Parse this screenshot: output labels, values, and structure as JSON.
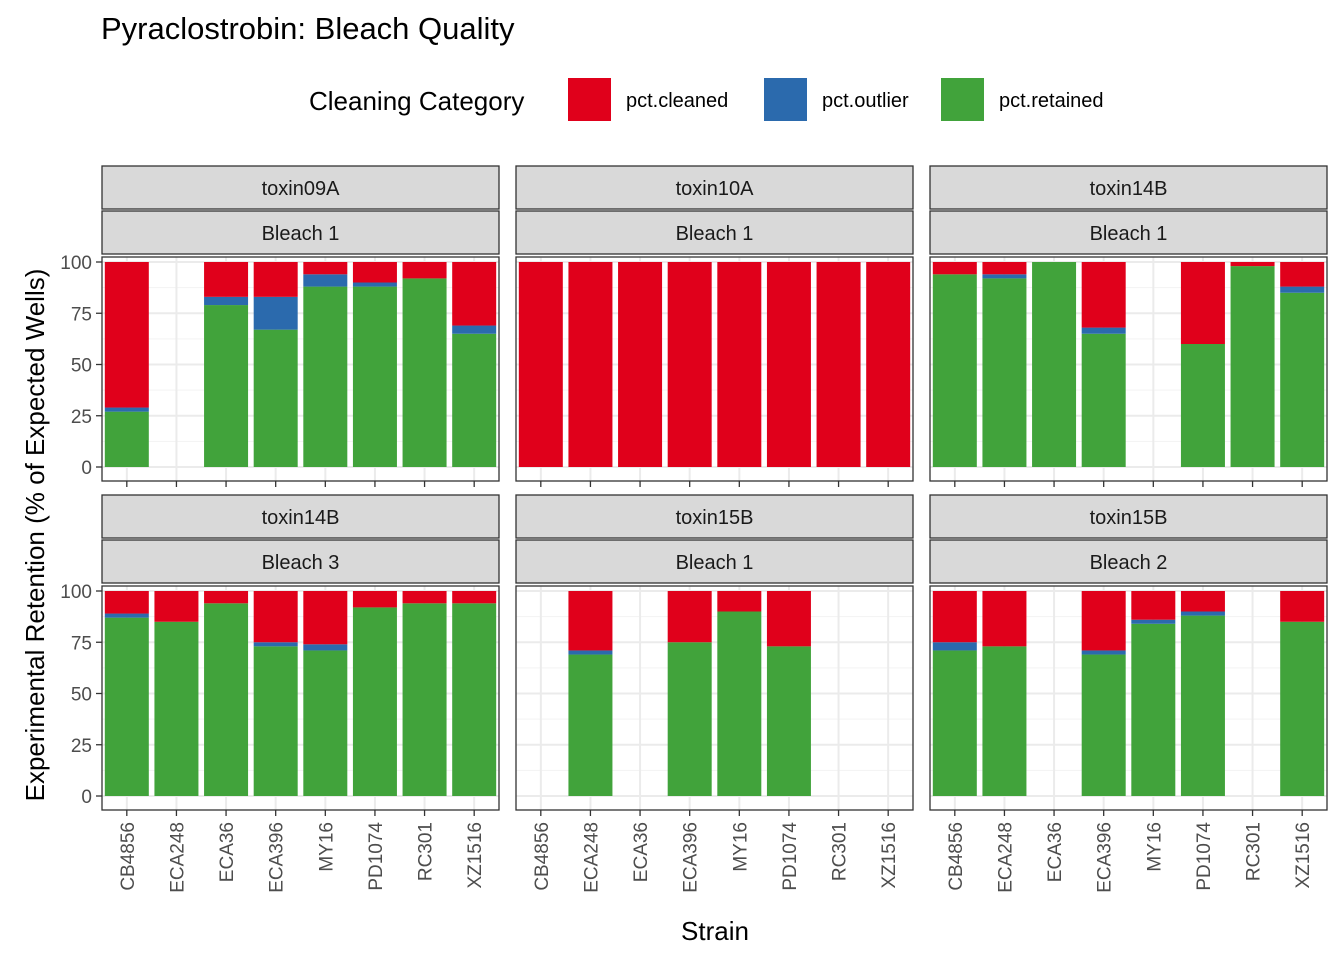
{
  "colors": {
    "pct.cleaned": "#E0001B",
    "pct.outlier": "#2B6AAD",
    "pct.retained": "#41A33B",
    "strip_fill": "#D9D9D9",
    "grid_major": "#EBEBEB",
    "grid_minor": "#F3F3F3",
    "panel_border": "#333333"
  },
  "chart_data": {
    "type": "bar",
    "stacked": true,
    "title": "Pyraclostrobin: Bleach Quality",
    "xlabel": "Strain",
    "ylabel": "Experimental Retention (% of Expected Wells)",
    "ylim": [
      0,
      100
    ],
    "yticks": [
      "0",
      "25",
      "50",
      "75",
      "100"
    ],
    "categories": [
      "CB4856",
      "ECA248",
      "ECA36",
      "ECA396",
      "MY16",
      "PD1074",
      "RC301",
      "XZ1516"
    ],
    "legend": {
      "title": "Cleaning Category",
      "position": "top",
      "entries": [
        "pct.cleaned",
        "pct.outlier",
        "pct.retained"
      ]
    },
    "stack_order_bottom_to_top": [
      "pct.retained",
      "pct.outlier",
      "pct.cleaned"
    ],
    "panels": [
      {
        "assay": "toxin09A",
        "bleach": "Bleach 1",
        "bars": [
          {
            "strain": "CB4856",
            "retained": 27,
            "outlier": 2,
            "cleaned": 71
          },
          {
            "strain": "ECA36",
            "retained": 79,
            "outlier": 4,
            "cleaned": 17
          },
          {
            "strain": "ECA396",
            "retained": 67,
            "outlier": 16,
            "cleaned": 17
          },
          {
            "strain": "MY16",
            "retained": 88,
            "outlier": 6,
            "cleaned": 6
          },
          {
            "strain": "PD1074",
            "retained": 88,
            "outlier": 2,
            "cleaned": 10
          },
          {
            "strain": "RC301",
            "retained": 92,
            "outlier": 0,
            "cleaned": 8
          },
          {
            "strain": "XZ1516",
            "retained": 65,
            "outlier": 4,
            "cleaned": 31
          }
        ]
      },
      {
        "assay": "toxin10A",
        "bleach": "Bleach 1",
        "bars": [
          {
            "strain": "CB4856",
            "retained": 0,
            "outlier": 0,
            "cleaned": 100
          },
          {
            "strain": "ECA248",
            "retained": 0,
            "outlier": 0,
            "cleaned": 100
          },
          {
            "strain": "ECA36",
            "retained": 0,
            "outlier": 0,
            "cleaned": 100
          },
          {
            "strain": "ECA396",
            "retained": 0,
            "outlier": 0,
            "cleaned": 100
          },
          {
            "strain": "MY16",
            "retained": 0,
            "outlier": 0,
            "cleaned": 100
          },
          {
            "strain": "PD1074",
            "retained": 0,
            "outlier": 0,
            "cleaned": 100
          },
          {
            "strain": "RC301",
            "retained": 0,
            "outlier": 0,
            "cleaned": 100
          },
          {
            "strain": "XZ1516",
            "retained": 0,
            "outlier": 0,
            "cleaned": 100
          }
        ]
      },
      {
        "assay": "toxin14B",
        "bleach": "Bleach 1",
        "bars": [
          {
            "strain": "CB4856",
            "retained": 94,
            "outlier": 0,
            "cleaned": 6
          },
          {
            "strain": "ECA248",
            "retained": 92,
            "outlier": 2,
            "cleaned": 6
          },
          {
            "strain": "ECA36",
            "retained": 100,
            "outlier": 0,
            "cleaned": 0
          },
          {
            "strain": "ECA396",
            "retained": 65,
            "outlier": 3,
            "cleaned": 32
          },
          {
            "strain": "PD1074",
            "retained": 60,
            "outlier": 0,
            "cleaned": 40
          },
          {
            "strain": "RC301",
            "retained": 98,
            "outlier": 0,
            "cleaned": 2
          },
          {
            "strain": "XZ1516",
            "retained": 85,
            "outlier": 3,
            "cleaned": 12
          }
        ]
      },
      {
        "assay": "toxin14B",
        "bleach": "Bleach 3",
        "bars": [
          {
            "strain": "CB4856",
            "retained": 87,
            "outlier": 2,
            "cleaned": 11
          },
          {
            "strain": "ECA248",
            "retained": 85,
            "outlier": 0,
            "cleaned": 15
          },
          {
            "strain": "ECA36",
            "retained": 94,
            "outlier": 0,
            "cleaned": 6
          },
          {
            "strain": "ECA396",
            "retained": 73,
            "outlier": 2,
            "cleaned": 25
          },
          {
            "strain": "MY16",
            "retained": 71,
            "outlier": 3,
            "cleaned": 26
          },
          {
            "strain": "PD1074",
            "retained": 92,
            "outlier": 0,
            "cleaned": 8
          },
          {
            "strain": "RC301",
            "retained": 94,
            "outlier": 0,
            "cleaned": 6
          },
          {
            "strain": "XZ1516",
            "retained": 94,
            "outlier": 0,
            "cleaned": 6
          }
        ]
      },
      {
        "assay": "toxin15B",
        "bleach": "Bleach 1",
        "bars": [
          {
            "strain": "ECA248",
            "retained": 69,
            "outlier": 2,
            "cleaned": 29
          },
          {
            "strain": "ECA396",
            "retained": 75,
            "outlier": 0,
            "cleaned": 25
          },
          {
            "strain": "MY16",
            "retained": 90,
            "outlier": 0,
            "cleaned": 10
          },
          {
            "strain": "PD1074",
            "retained": 73,
            "outlier": 0,
            "cleaned": 27
          }
        ]
      },
      {
        "assay": "toxin15B",
        "bleach": "Bleach 2",
        "bars": [
          {
            "strain": "CB4856",
            "retained": 71,
            "outlier": 4,
            "cleaned": 25
          },
          {
            "strain": "ECA248",
            "retained": 73,
            "outlier": 0,
            "cleaned": 27
          },
          {
            "strain": "ECA396",
            "retained": 69,
            "outlier": 2,
            "cleaned": 29
          },
          {
            "strain": "MY16",
            "retained": 84,
            "outlier": 2,
            "cleaned": 14
          },
          {
            "strain": "PD1074",
            "retained": 88,
            "outlier": 2,
            "cleaned": 10
          },
          {
            "strain": "XZ1516",
            "retained": 85,
            "outlier": 0,
            "cleaned": 15
          }
        ]
      }
    ]
  }
}
